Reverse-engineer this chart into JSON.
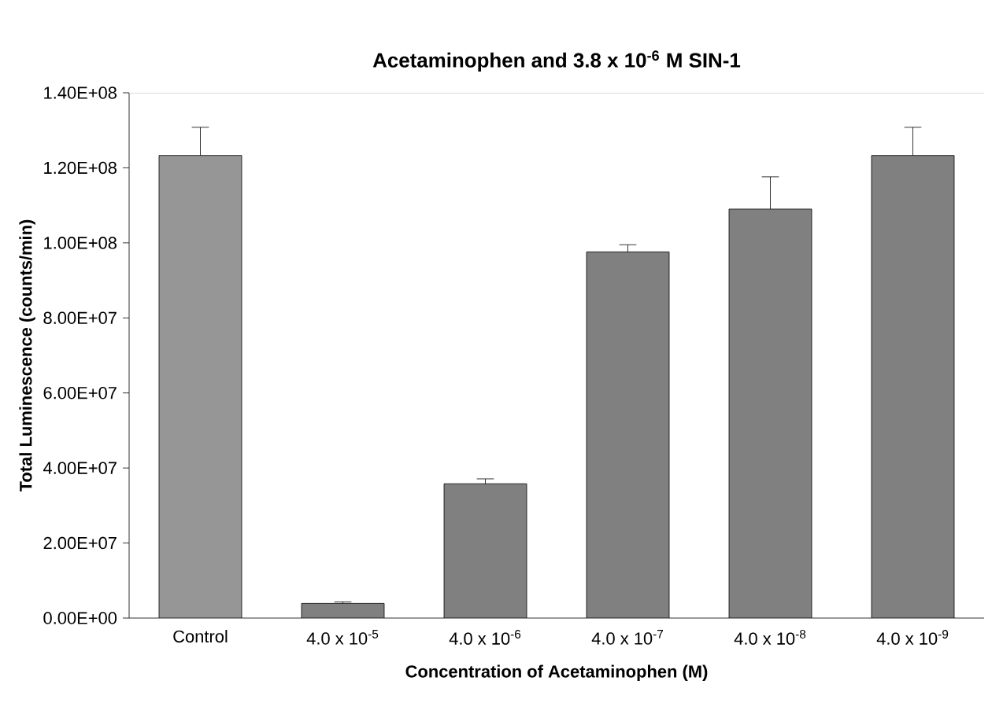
{
  "chart_data": {
    "type": "bar",
    "title": "**Acetaminophen and 3.8 x 10$^{-6}$ M SIN-1**",
    "xlabel": "Concentration of Acetaminophen (M)",
    "ylabel": "Total Luminescence (counts/min)",
    "categories": [
      "Control",
      "4.0 x 10$^{-5}$",
      "4.0 x 10$^{-6}$",
      "4.0 x 10$^{-7}$",
      "4.0 x 10$^{-8}$",
      "4.0 x 10$^{-9}$"
    ],
    "values": [
      123300000,
      3900000,
      35800000,
      97600000,
      109000000,
      123300000
    ],
    "errors": [
      [
        123300000,
        130800000
      ],
      [
        3900000,
        4300000
      ],
      [
        35800000,
        37100000
      ],
      [
        97600000,
        99500000
      ],
      [
        109000000,
        117600000
      ],
      [
        123300000,
        130800000
      ]
    ],
    "colors": [
      "#969696",
      "#808080",
      "#808080",
      "#808080",
      "#808080",
      "#808080"
    ],
    "ylim": [
      0,
      140000000
    ],
    "yticks": [
      {
        "value": 0,
        "label": "0.00E+00"
      },
      {
        "value": 20000000,
        "label": "2.00E+07"
      },
      {
        "value": 40000000,
        "label": "4.00E+07"
      },
      {
        "value": 60000000,
        "label": "6.00E+07"
      },
      {
        "value": 80000000,
        "label": "8.00E+07"
      },
      {
        "value": 100000000,
        "label": "1.00E+08"
      },
      {
        "value": 120000000,
        "label": "1.20E+08"
      },
      {
        "value": 140000000,
        "label": "1.40E+08"
      }
    ]
  }
}
